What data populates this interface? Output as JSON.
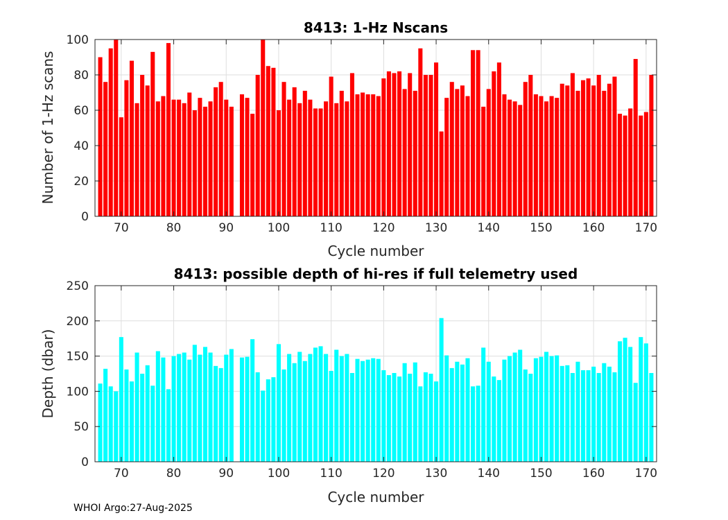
{
  "chart_data": [
    {
      "type": "bar",
      "title": "8413: 1-Hz Nscans",
      "xlabel": "Cycle number",
      "ylabel": "Number of 1-Hz scans",
      "color": "#ff0000",
      "xlim": [
        65,
        172
      ],
      "ylim": [
        0,
        100
      ],
      "xticks": [
        70,
        80,
        90,
        100,
        110,
        120,
        130,
        140,
        150,
        160,
        170
      ],
      "yticks": [
        0,
        20,
        40,
        60,
        80,
        100
      ],
      "grid": true,
      "x": [
        66,
        67,
        68,
        69,
        70,
        71,
        72,
        73,
        74,
        75,
        76,
        77,
        78,
        79,
        80,
        81,
        82,
        83,
        84,
        85,
        86,
        87,
        88,
        89,
        90,
        91,
        92,
        93,
        94,
        95,
        96,
        97,
        98,
        99,
        100,
        101,
        102,
        103,
        104,
        105,
        106,
        107,
        108,
        109,
        110,
        111,
        112,
        113,
        114,
        115,
        116,
        117,
        118,
        119,
        120,
        121,
        122,
        123,
        124,
        125,
        126,
        127,
        128,
        129,
        130,
        131,
        132,
        133,
        134,
        135,
        136,
        137,
        138,
        139,
        140,
        141,
        142,
        143,
        144,
        145,
        146,
        147,
        148,
        149,
        150,
        151,
        152,
        153,
        154,
        155,
        156,
        157,
        158,
        159,
        160,
        161,
        162,
        163,
        164,
        165,
        166,
        167,
        168,
        169,
        170,
        171
      ],
      "values": [
        90,
        76,
        95,
        100,
        56,
        77,
        88,
        64,
        80,
        74,
        93,
        65,
        68,
        98,
        66,
        66,
        64,
        70,
        60,
        67,
        62,
        65,
        73,
        76,
        66,
        62,
        null,
        69,
        67,
        58,
        80,
        100,
        85,
        84,
        60,
        76,
        66,
        73,
        64,
        71,
        66,
        61,
        61,
        65,
        79,
        64,
        71,
        65,
        81,
        69,
        70,
        69,
        69,
        68,
        78,
        82,
        81,
        82,
        72,
        81,
        71,
        95,
        80,
        80,
        87,
        48,
        67,
        76,
        72,
        74,
        68,
        94,
        94,
        62,
        72,
        82,
        87,
        69,
        66,
        65,
        63,
        76,
        80,
        69,
        68,
        65,
        68,
        67,
        75,
        74,
        81,
        71,
        77,
        78,
        74,
        80,
        71,
        75,
        79,
        58,
        57,
        61,
        89,
        57,
        59,
        80
      ]
    },
    {
      "type": "bar",
      "title": "8413: possible depth of hi-res if full telemetry used",
      "xlabel": "Cycle number",
      "ylabel": "Depth (dbar)",
      "color": "#00ffff",
      "xlim": [
        65,
        172
      ],
      "ylim": [
        0,
        250
      ],
      "xticks": [
        70,
        80,
        90,
        100,
        110,
        120,
        130,
        140,
        150,
        160,
        170
      ],
      "yticks": [
        0,
        50,
        100,
        150,
        200,
        250
      ],
      "grid": true,
      "x": [
        66,
        67,
        68,
        69,
        70,
        71,
        72,
        73,
        74,
        75,
        76,
        77,
        78,
        79,
        80,
        81,
        82,
        83,
        84,
        85,
        86,
        87,
        88,
        89,
        90,
        91,
        92,
        93,
        94,
        95,
        96,
        97,
        98,
        99,
        100,
        101,
        102,
        103,
        104,
        105,
        106,
        107,
        108,
        109,
        110,
        111,
        112,
        113,
        114,
        115,
        116,
        117,
        118,
        119,
        120,
        121,
        122,
        123,
        124,
        125,
        126,
        127,
        128,
        129,
        130,
        131,
        132,
        133,
        134,
        135,
        136,
        137,
        138,
        139,
        140,
        141,
        142,
        143,
        144,
        145,
        146,
        147,
        148,
        149,
        150,
        151,
        152,
        153,
        154,
        155,
        156,
        157,
        158,
        159,
        160,
        161,
        162,
        163,
        164,
        165,
        166,
        167,
        168,
        169,
        170,
        171
      ],
      "values": [
        111,
        132,
        107,
        100,
        177,
        131,
        114,
        155,
        125,
        137,
        108,
        157,
        148,
        103,
        150,
        153,
        155,
        145,
        166,
        152,
        163,
        155,
        136,
        133,
        152,
        160,
        null,
        148,
        149,
        174,
        127,
        101,
        117,
        120,
        167,
        131,
        153,
        140,
        156,
        143,
        153,
        162,
        164,
        153,
        129,
        159,
        150,
        153,
        126,
        146,
        143,
        145,
        147,
        146,
        130,
        123,
        126,
        121,
        140,
        125,
        141,
        107,
        127,
        125,
        114,
        204,
        151,
        133,
        142,
        138,
        147,
        107,
        108,
        162,
        142,
        121,
        116,
        145,
        150,
        155,
        159,
        131,
        125,
        147,
        149,
        156,
        150,
        151,
        136,
        137,
        126,
        142,
        130,
        130,
        135,
        126,
        140,
        135,
        127,
        171,
        176,
        163,
        112,
        177,
        168,
        126
      ]
    }
  ],
  "footer": "WHOI Argo:27-Aug-2025"
}
